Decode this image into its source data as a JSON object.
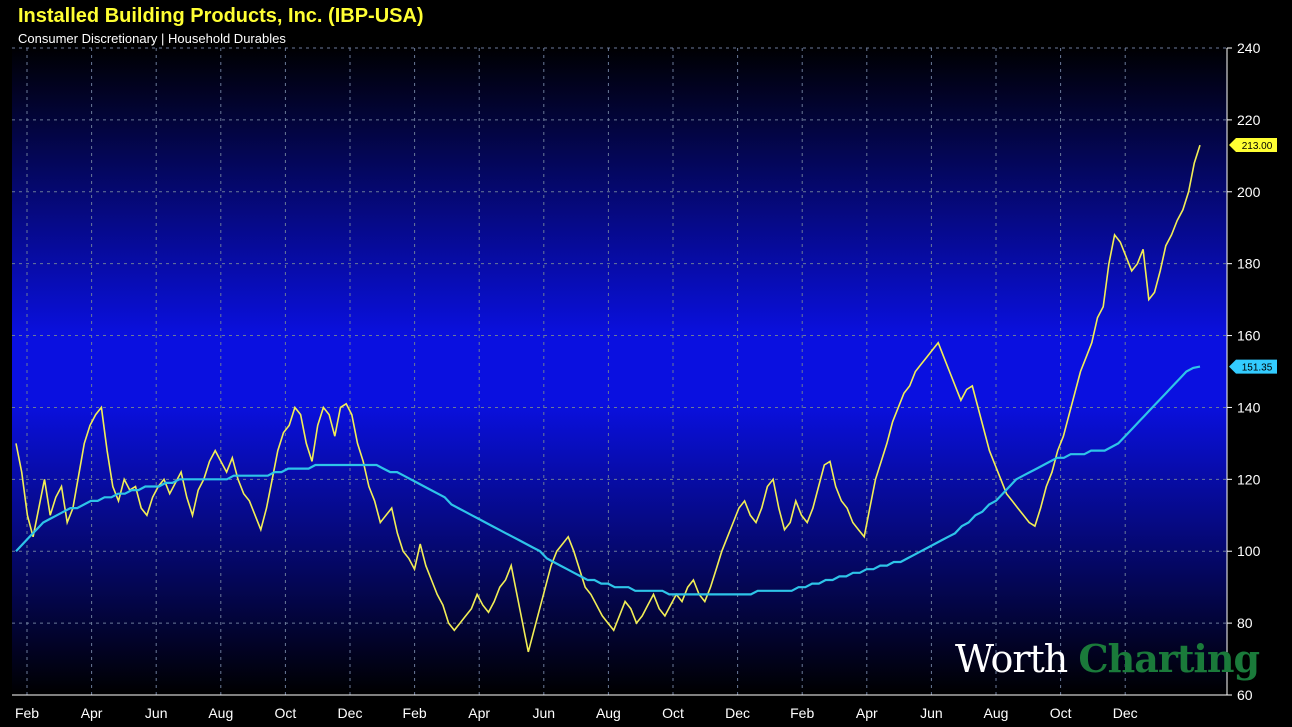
{
  "title": "Installed Building Products, Inc. (IBP-USA)",
  "subtitle": "Consumer Discretionary | Household Durables",
  "watermark": {
    "part1": "Worth",
    "part2": "Charting"
  },
  "colors": {
    "price": "#f2ee55",
    "moving_average": "#2ec4e8",
    "price_badge": "#ffff33",
    "ma_badge": "#33ccff",
    "grid": "#6b7a99"
  },
  "chart_data": {
    "type": "line",
    "x_labels": [
      "Feb",
      "Apr",
      "Jun",
      "Aug",
      "Oct",
      "Dec",
      "Feb",
      "Apr",
      "Jun",
      "Aug",
      "Oct",
      "Dec",
      "Feb",
      "Apr",
      "Jun",
      "Aug",
      "Oct",
      "Dec"
    ],
    "y_ticks": [
      60,
      80,
      100,
      120,
      140,
      160,
      180,
      200,
      220,
      240
    ],
    "ylim": [
      60,
      240
    ],
    "last_price_label": "213.00",
    "last_ma_label": "151.35",
    "grid": true,
    "series": [
      {
        "values": [
          130,
          122,
          110,
          104,
          112,
          120,
          110,
          115,
          118,
          108,
          112,
          121,
          130,
          135,
          138,
          140,
          128,
          118,
          114,
          120,
          117,
          118,
          112,
          110,
          115,
          118,
          120,
          116,
          119,
          122,
          115,
          110,
          117,
          120,
          125,
          128,
          125,
          122,
          126,
          120,
          116,
          114,
          110,
          106,
          112,
          120,
          128,
          133,
          135,
          140,
          138,
          130,
          125,
          135,
          140,
          138,
          132,
          140,
          141,
          138,
          130,
          125,
          118,
          114,
          108,
          110,
          112,
          105,
          100,
          98,
          95,
          102,
          96,
          92,
          88,
          85,
          80,
          78,
          80,
          82,
          84,
          88,
          85,
          83,
          86,
          90,
          92,
          96,
          88,
          80,
          72,
          78,
          84,
          90,
          96,
          100,
          102,
          104,
          100,
          95,
          90,
          88,
          85,
          82,
          80,
          78,
          82,
          86,
          84,
          80,
          82,
          85,
          88,
          84,
          82,
          85,
          88,
          86,
          90,
          92,
          88,
          86,
          90,
          95,
          100,
          104,
          108,
          112,
          114,
          110,
          108,
          112,
          118,
          120,
          112,
          106,
          108,
          114,
          110,
          108,
          112,
          118,
          124,
          125,
          118,
          114,
          112,
          108,
          106,
          104,
          112,
          120,
          125,
          130,
          136,
          140,
          144,
          146,
          150,
          152,
          154,
          156,
          158,
          154,
          150,
          146,
          142,
          145,
          146,
          140,
          134,
          128,
          124,
          120,
          116,
          114,
          112,
          110,
          108,
          107,
          112,
          118,
          122,
          128,
          132,
          138,
          144,
          150,
          154,
          158,
          165,
          168,
          180,
          188,
          186,
          182,
          178,
          180,
          184,
          170,
          172,
          178,
          185,
          188,
          192,
          195,
          200,
          208,
          213
        ]
      },
      {
        "values": [
          100,
          102,
          104,
          106,
          108,
          109,
          110,
          111,
          112,
          112,
          113,
          114,
          114,
          115,
          115,
          116,
          116,
          117,
          117,
          118,
          118,
          118,
          119,
          119,
          120,
          120,
          120,
          120,
          120,
          120,
          120,
          120,
          121,
          121,
          121,
          121,
          121,
          121,
          122,
          122,
          123,
          123,
          123,
          123,
          124,
          124,
          124,
          124,
          124,
          124,
          124,
          124,
          124,
          124,
          123,
          122,
          122,
          121,
          120,
          119,
          118,
          117,
          116,
          115,
          113,
          112,
          111,
          110,
          109,
          108,
          107,
          106,
          105,
          104,
          103,
          102,
          101,
          100,
          98,
          97,
          96,
          95,
          94,
          93,
          92,
          92,
          91,
          91,
          90,
          90,
          90,
          89,
          89,
          89,
          89,
          89,
          88,
          88,
          88,
          88,
          88,
          88,
          88,
          88,
          88,
          88,
          88,
          88,
          88,
          89,
          89,
          89,
          89,
          89,
          89,
          90,
          90,
          91,
          91,
          92,
          92,
          93,
          93,
          94,
          94,
          95,
          95,
          96,
          96,
          97,
          97,
          98,
          99,
          100,
          101,
          102,
          103,
          104,
          105,
          107,
          108,
          110,
          111,
          113,
          114,
          116,
          118,
          120,
          121,
          122,
          123,
          124,
          125,
          126,
          126,
          127,
          127,
          127,
          128,
          128,
          128,
          129,
          130,
          132,
          134,
          136,
          138,
          140,
          142,
          144,
          146,
          148,
          150,
          151,
          151.35
        ]
      }
    ]
  }
}
